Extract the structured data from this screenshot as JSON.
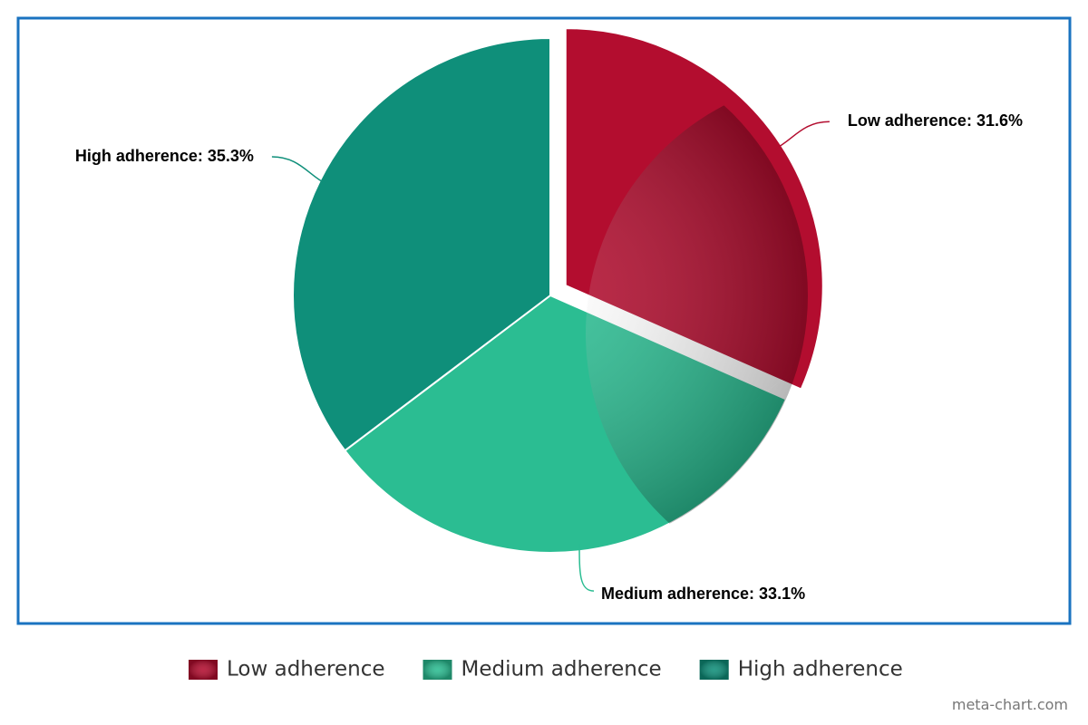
{
  "chart_data": {
    "type": "pie",
    "categories": [
      "Low adherence",
      "Medium adherence",
      "High adherence"
    ],
    "values": [
      31.6,
      33.1,
      35.3
    ],
    "value_labels": [
      "Low adherence: 31.6%",
      "Medium adherence: 33.1%",
      "High adherence: 35.3%"
    ],
    "colors": [
      "#b30d2f",
      "#2bbd92",
      "#0f8f7a"
    ],
    "exploded": [
      true,
      false,
      false
    ],
    "legend": "bottom"
  },
  "footer": {
    "credit": "meta-chart.com"
  }
}
